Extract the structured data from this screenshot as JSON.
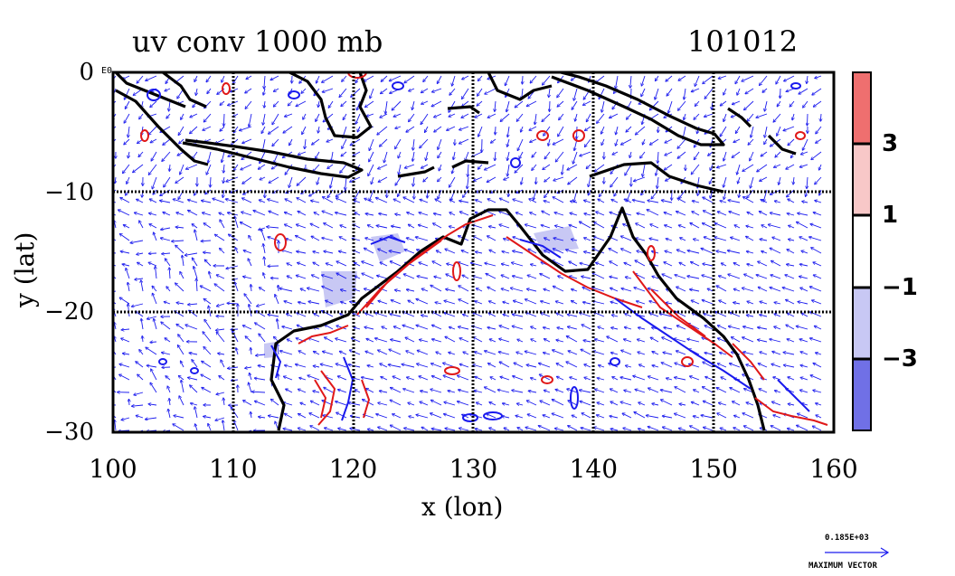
{
  "title": {
    "field": "uv conv 1000 mb",
    "date": "101012"
  },
  "axes": {
    "xlabel": "x (lon)",
    "ylabel": "y (lat)",
    "x_ticks": [
      {
        "value": 100,
        "label": "100"
      },
      {
        "value": 110,
        "label": "110"
      },
      {
        "value": 120,
        "label": "120"
      },
      {
        "value": 130,
        "label": "130"
      },
      {
        "value": 140,
        "label": "140"
      },
      {
        "value": 150,
        "label": "150"
      },
      {
        "value": 160,
        "label": "160"
      }
    ],
    "y_ticks": [
      {
        "value": 0,
        "label": "0"
      },
      {
        "value": -10,
        "label": "−10"
      },
      {
        "value": -20,
        "label": "−20"
      },
      {
        "value": -30,
        "label": "−30"
      }
    ],
    "corner_mark": "E0",
    "xlim": [
      100,
      160
    ],
    "ylim": [
      -30,
      0
    ]
  },
  "colorbar": {
    "labels": [
      "3",
      "1",
      "−1",
      "−3"
    ],
    "bands": [
      {
        "color": "#ef6f6f"
      },
      {
        "color": "#f8c8c8"
      },
      {
        "color": "#ffffff"
      },
      {
        "color": "#c8c8f4"
      },
      {
        "color": "#7070e6"
      }
    ]
  },
  "vector_key": {
    "value": "0.185E+03",
    "label": "MAXIMUM VECTOR"
  },
  "colors": {
    "positive_contour": "#e01818",
    "negative_contour": "#1a1aee",
    "vectors": "#1a1aee",
    "coast": "#000000"
  }
}
